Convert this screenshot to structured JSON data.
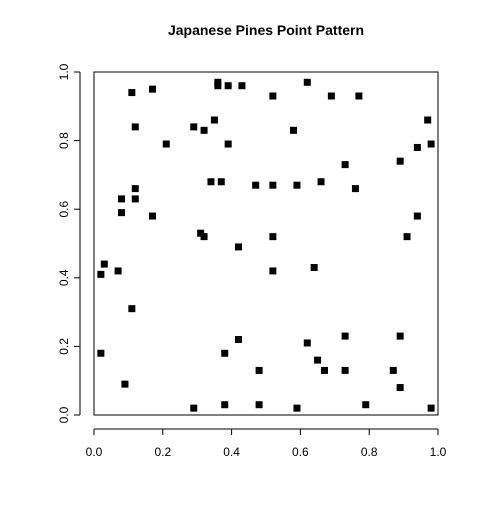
{
  "chart_data": {
    "type": "scatter",
    "title": "Japanese Pines Point Pattern",
    "xlabel": "",
    "ylabel": "",
    "xlim": [
      0,
      1
    ],
    "ylim": [
      0,
      1
    ],
    "grid": false,
    "legend": "none",
    "x_ticks": [
      "0.0",
      "0.2",
      "0.4",
      "0.6",
      "0.8",
      "1.0"
    ],
    "y_ticks": [
      "0.0",
      "0.2",
      "0.4",
      "0.6",
      "0.8",
      "1.0"
    ],
    "marker": "filled-square",
    "marker_color": "#000000",
    "points": [
      [
        0.09,
        0.09
      ],
      [
        0.29,
        0.02
      ],
      [
        0.38,
        0.03
      ],
      [
        0.48,
        0.03
      ],
      [
        0.59,
        0.02
      ],
      [
        0.79,
        0.03
      ],
      [
        0.98,
        0.02
      ],
      [
        0.02,
        0.18
      ],
      [
        0.48,
        0.13
      ],
      [
        0.65,
        0.16
      ],
      [
        0.67,
        0.13
      ],
      [
        0.73,
        0.13
      ],
      [
        0.87,
        0.13
      ],
      [
        0.89,
        0.08
      ],
      [
        0.38,
        0.18
      ],
      [
        0.42,
        0.22
      ],
      [
        0.62,
        0.21
      ],
      [
        0.73,
        0.23
      ],
      [
        0.89,
        0.23
      ],
      [
        0.11,
        0.31
      ],
      [
        0.02,
        0.41
      ],
      [
        0.03,
        0.44
      ],
      [
        0.07,
        0.42
      ],
      [
        0.52,
        0.42
      ],
      [
        0.64,
        0.43
      ],
      [
        0.31,
        0.53
      ],
      [
        0.32,
        0.52
      ],
      [
        0.42,
        0.49
      ],
      [
        0.52,
        0.52
      ],
      [
        0.91,
        0.52
      ],
      [
        0.08,
        0.59
      ],
      [
        0.08,
        0.63
      ],
      [
        0.12,
        0.63
      ],
      [
        0.12,
        0.66
      ],
      [
        0.17,
        0.58
      ],
      [
        0.34,
        0.68
      ],
      [
        0.37,
        0.68
      ],
      [
        0.47,
        0.67
      ],
      [
        0.52,
        0.67
      ],
      [
        0.59,
        0.67
      ],
      [
        0.66,
        0.68
      ],
      [
        0.76,
        0.66
      ],
      [
        0.94,
        0.58
      ],
      [
        0.21,
        0.79
      ],
      [
        0.12,
        0.84
      ],
      [
        0.29,
        0.84
      ],
      [
        0.32,
        0.83
      ],
      [
        0.35,
        0.86
      ],
      [
        0.39,
        0.79
      ],
      [
        0.58,
        0.83
      ],
      [
        0.73,
        0.73
      ],
      [
        0.89,
        0.74
      ],
      [
        0.94,
        0.78
      ],
      [
        0.97,
        0.86
      ],
      [
        0.98,
        0.79
      ],
      [
        0.11,
        0.94
      ],
      [
        0.17,
        0.95
      ],
      [
        0.36,
        0.96
      ],
      [
        0.36,
        0.97
      ],
      [
        0.39,
        0.96
      ],
      [
        0.43,
        0.96
      ],
      [
        0.52,
        0.93
      ],
      [
        0.62,
        0.97
      ],
      [
        0.69,
        0.93
      ],
      [
        0.77,
        0.93
      ]
    ]
  }
}
